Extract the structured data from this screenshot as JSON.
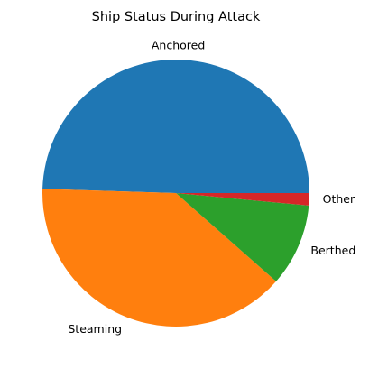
{
  "chart_data": {
    "type": "pie",
    "title": "Ship Status During Attack",
    "categories": [
      "Anchored",
      "Steaming",
      "Berthed",
      "Other"
    ],
    "values": [
      49.5,
      39.0,
      10.0,
      1.5
    ],
    "colors": [
      "#1f77b4",
      "#ff7f0e",
      "#2ca02c",
      "#d62728"
    ],
    "start_angle_deg": 0,
    "direction": "counterclockwise",
    "legend": "none"
  }
}
